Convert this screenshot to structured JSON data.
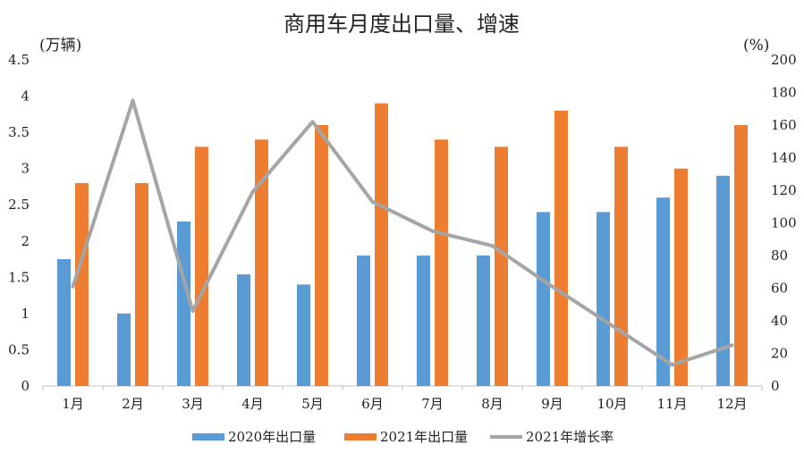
{
  "chart_data": {
    "type": "bar+line",
    "title": "商用车月度出口量、增速",
    "y_left_label": "(万辆)",
    "y_right_label": "(%)",
    "y_left_ticks": [
      "0",
      "0.5",
      "1",
      "1.5",
      "2",
      "2.5",
      "3",
      "3.5",
      "4",
      "4.5"
    ],
    "y_right_ticks": [
      "0",
      "20",
      "40",
      "60",
      "80",
      "100",
      "120",
      "140",
      "160",
      "180",
      "200"
    ],
    "ylim_left": [
      0,
      4.5
    ],
    "ylim_right": [
      0,
      200
    ],
    "categories": [
      "1月",
      "2月",
      "3月",
      "4月",
      "5月",
      "6月",
      "7月",
      "8月",
      "9月",
      "10月",
      "11月",
      "12月"
    ],
    "series": [
      {
        "name": "2020年出口量",
        "type": "bar",
        "axis": "left",
        "color": "#5B9BD5",
        "values": [
          1.75,
          1.0,
          2.27,
          1.54,
          1.4,
          1.8,
          1.8,
          1.8,
          2.4,
          2.4,
          2.6,
          2.9
        ]
      },
      {
        "name": "2021年出口量",
        "type": "bar",
        "axis": "left",
        "color": "#ED7D31",
        "values": [
          2.8,
          2.8,
          3.3,
          3.4,
          3.6,
          3.9,
          3.4,
          3.3,
          3.8,
          3.3,
          3.0,
          3.6
        ]
      },
      {
        "name": "2021年增长率",
        "type": "line",
        "axis": "right",
        "color": "#A5A5A5",
        "values": [
          61,
          175,
          46,
          119,
          162,
          113,
          95,
          86,
          61,
          37,
          13,
          25
        ]
      }
    ],
    "legend_position": "bottom",
    "grid": false
  }
}
